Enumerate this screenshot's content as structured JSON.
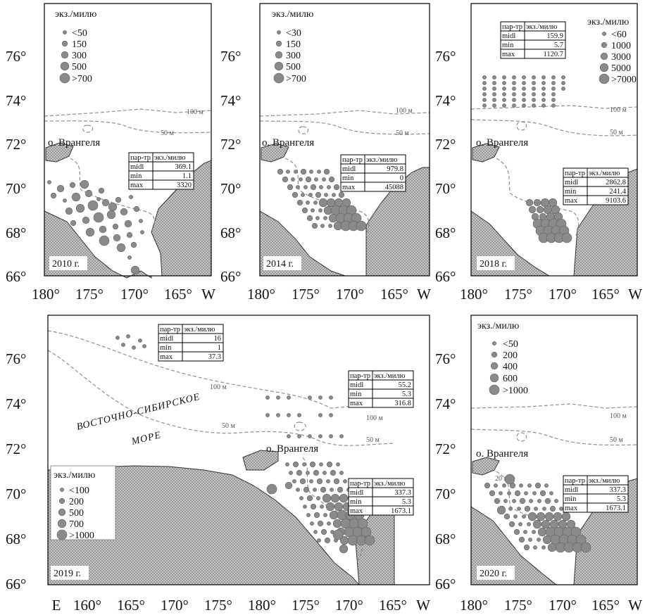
{
  "island_name": "о. Врангеля",
  "isobaths": {
    "m100": "100 м",
    "m50": "50 м",
    "m20": "20 м"
  },
  "colors": {
    "land_fill": "#bdbdbd",
    "dot": "#8a8a8a",
    "dot_stroke": "#5e5e5e",
    "isobath": "#8f8f8f"
  },
  "table_headers": [
    "пар-тр",
    "экз./милю"
  ],
  "stat_row_labels": [
    "midl",
    "min",
    "max"
  ],
  "sea_label_line1": "ВОСТОЧНО-СИБИРСКОЕ",
  "sea_label_line2": "МОРЕ",
  "panels": [
    {
      "id": "p2010",
      "year": "2010 г.",
      "x_ticks": [
        "180°",
        "175°",
        "170°",
        "165°",
        "W"
      ],
      "y_ticks": [
        "76°",
        "74°",
        "72°",
        "70°",
        "68°",
        "66°"
      ],
      "legend": {
        "title": "экз./милю",
        "items": [
          "<50",
          "150",
          "300",
          "500",
          ">700"
        ]
      },
      "tables": [
        {
          "values": [
            "369.1",
            "1.1",
            "3320"
          ]
        }
      ]
    },
    {
      "id": "p2014",
      "year": "2014 г.",
      "x_ticks": [
        "180°",
        "175°",
        "170°",
        "165°",
        "W"
      ],
      "y_ticks": [
        "76°",
        "74°",
        "72°",
        "70°",
        "68°",
        "66°"
      ],
      "legend": {
        "title": "экз./милю",
        "items": [
          "<30",
          "150",
          "300",
          "500",
          ">700"
        ]
      },
      "tables": [
        {
          "values": [
            "979.8",
            "0",
            "45088"
          ]
        }
      ]
    },
    {
      "id": "p2018",
      "year": "2018 г.",
      "x_ticks": [
        "180°",
        "175°",
        "170°",
        "165°",
        "W"
      ],
      "y_ticks": [
        "76°",
        "74°",
        "72°",
        "70°",
        "68°",
        "66°"
      ],
      "legend": {
        "title": "экз./милю",
        "items": [
          "<60",
          "1000",
          "3000",
          "5000",
          ">7000"
        ]
      },
      "tables": [
        {
          "values": [
            "159.9",
            "5.7",
            "1120.7"
          ]
        },
        {
          "values": [
            "2862.8",
            "241.4",
            "9103.6"
          ]
        }
      ]
    },
    {
      "id": "p2019",
      "year": "2019 г.",
      "x_ticks": [
        "E",
        "160°",
        "165°",
        "170°",
        "175°",
        "180°",
        "175°",
        "170°",
        "165°",
        "W"
      ],
      "y_ticks": [],
      "legend": {
        "title": "экз./милю",
        "items": [
          "<100",
          "200",
          "500",
          "700",
          ">1000"
        ]
      },
      "tables": [
        {
          "values": [
            "16",
            "1",
            "37.3"
          ]
        },
        {
          "values": [
            "55.2",
            "5.3",
            "316.8"
          ]
        },
        {
          "values": [
            "337.3",
            "5.3",
            "1673.1"
          ]
        }
      ]
    },
    {
      "id": "p2020",
      "year": "2020 г.",
      "x_ticks": [
        "180°",
        "175°",
        "170°",
        "165°",
        "W"
      ],
      "y_ticks": [
        "76°",
        "74°",
        "72°",
        "70°",
        "68°",
        "66°"
      ],
      "legend": {
        "title": "экз./милю",
        "items": [
          "<50",
          "200",
          "400",
          "600",
          ">1000"
        ]
      },
      "tables": [
        {
          "values": [
            "337.3",
            "5.3",
            "1673.1"
          ]
        }
      ]
    }
  ]
}
